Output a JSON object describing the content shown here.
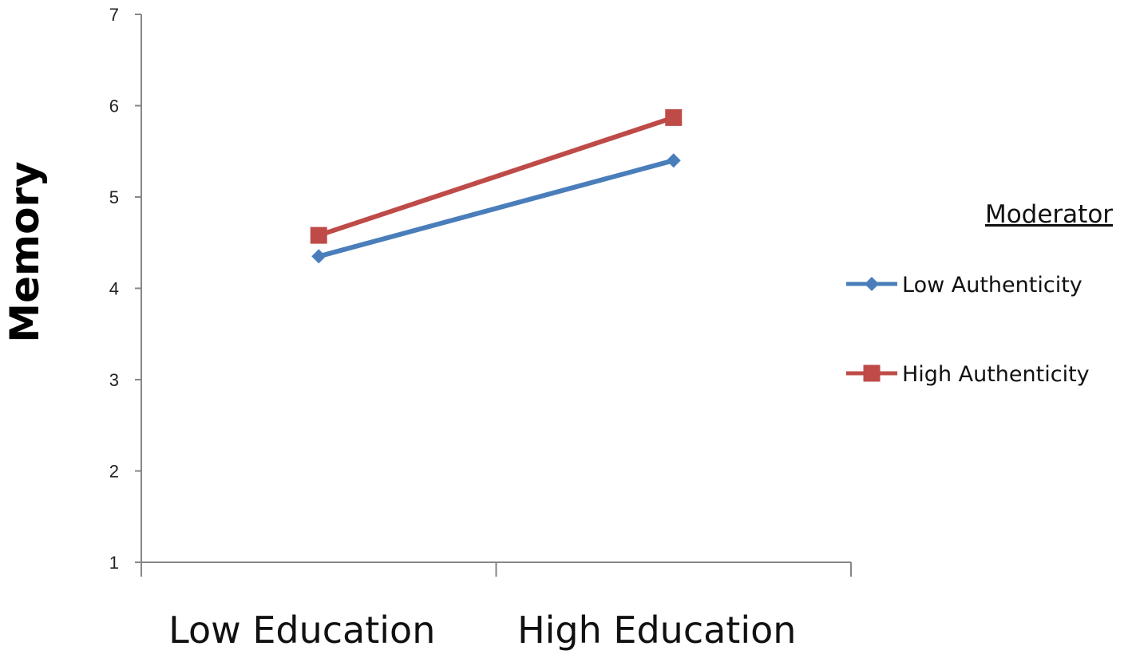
{
  "chart_data": {
    "type": "line",
    "categories": [
      "Low Education",
      "High Education"
    ],
    "series": [
      {
        "name": "Low Authenticity",
        "values": [
          4.35,
          5.4
        ],
        "color": "#4a7ebb",
        "marker": "diamond"
      },
      {
        "name": "High Authenticity",
        "values": [
          4.58,
          5.87
        ],
        "color": "#be4b48",
        "marker": "square"
      }
    ],
    "ylabel": "Memory",
    "xlabel": "",
    "ylim": [
      1,
      7
    ],
    "yticks": [
      "1",
      "2",
      "3",
      "4",
      "5",
      "6",
      "7"
    ],
    "grid": false,
    "legend": {
      "title": "Moderator",
      "position": "right"
    }
  }
}
